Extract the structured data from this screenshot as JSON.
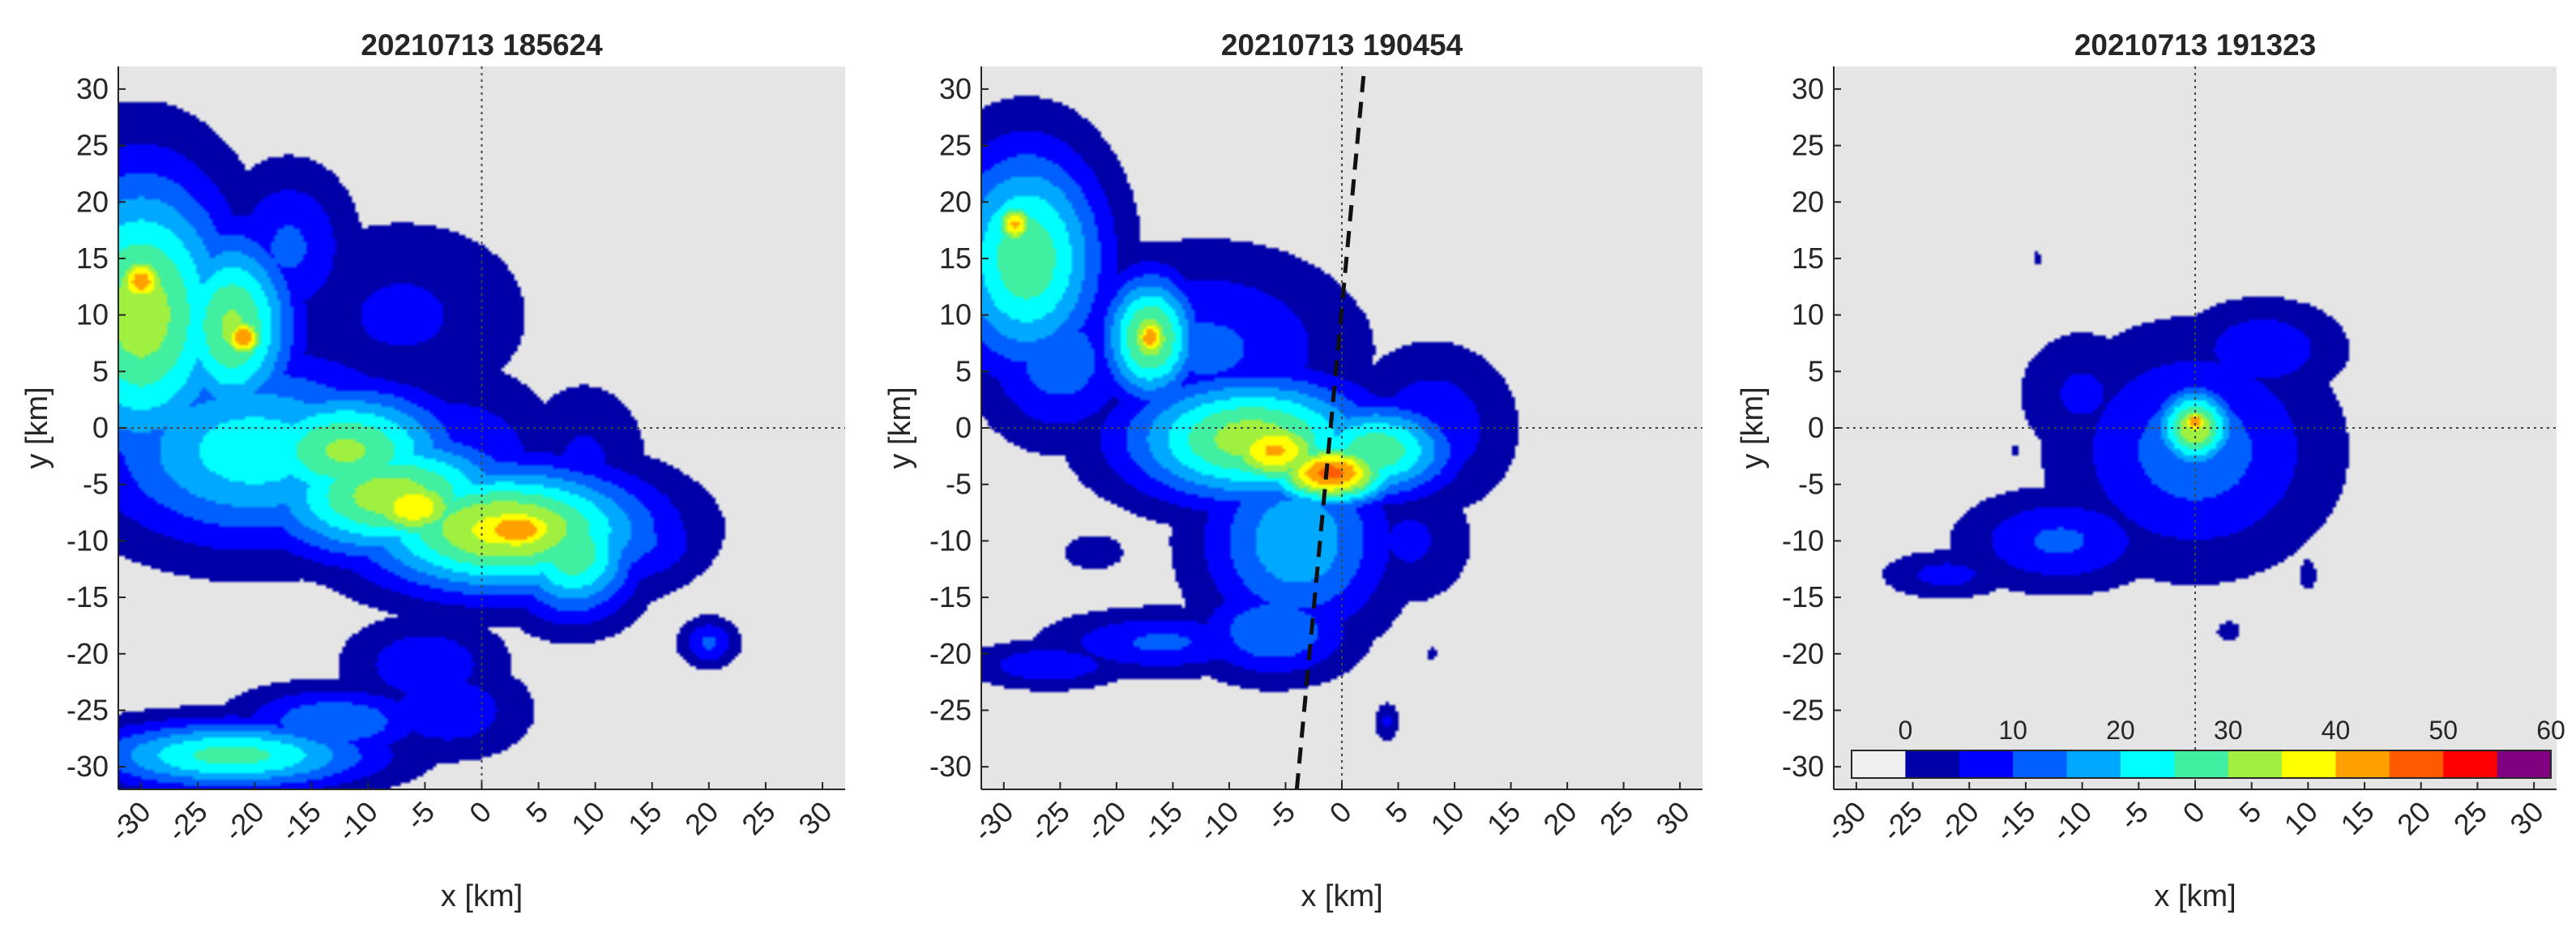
{
  "colors": {
    "background": "#e5e5e5",
    "axis": "#262626",
    "crosshair": "#444444",
    "track": "#111111"
  },
  "chart_data": [
    {
      "type": "heatmap",
      "title": "20210713 185624",
      "xlabel": "x [km]",
      "ylabel": "y [km]",
      "xlim": [
        -32,
        32
      ],
      "ylim": [
        -32,
        32
      ],
      "xticks": [
        "-30",
        "-25",
        "-20",
        "-15",
        "-10",
        "-5",
        "0",
        "5",
        "10",
        "15",
        "20",
        "25",
        "30"
      ],
      "yticks": [
        "30",
        "25",
        "20",
        "15",
        "10",
        "5",
        "0",
        "-5",
        "-10",
        "-15",
        "-20",
        "-25",
        "-30"
      ],
      "crosshair": [
        0,
        0
      ],
      "features": [
        {
          "x": -30,
          "y": 10,
          "sx": 6,
          "sy": 9,
          "val": 32
        },
        {
          "x": -30,
          "y": 13,
          "sx": 2,
          "sy": 2,
          "val": 42
        },
        {
          "x": -22,
          "y": 9,
          "sx": 4,
          "sy": 6,
          "val": 30
        },
        {
          "x": -21,
          "y": 8,
          "sx": 1.5,
          "sy": 1.5,
          "val": 44
        },
        {
          "x": -17,
          "y": 16,
          "sx": 4,
          "sy": 5,
          "val": 10
        },
        {
          "x": -7,
          "y": 10,
          "sx": 8,
          "sy": 6,
          "val": 5
        },
        {
          "x": -20,
          "y": -2,
          "sx": 10,
          "sy": 6,
          "val": 22
        },
        {
          "x": -12,
          "y": -2,
          "sx": 7,
          "sy": 4,
          "val": 30
        },
        {
          "x": -8,
          "y": -6,
          "sx": 8,
          "sy": 4,
          "val": 32
        },
        {
          "x": -6,
          "y": -7,
          "sx": 4,
          "sy": 2.5,
          "val": 38
        },
        {
          "x": 2,
          "y": -9,
          "sx": 9,
          "sy": 4,
          "val": 36
        },
        {
          "x": 3,
          "y": -9,
          "sx": 4,
          "sy": 2,
          "val": 44
        },
        {
          "x": -2,
          "y": -4,
          "sx": 6,
          "sy": 6,
          "val": 10
        },
        {
          "x": 8,
          "y": -11,
          "sx": 4,
          "sy": 4,
          "val": 28
        },
        {
          "x": 9,
          "y": -3,
          "sx": 4,
          "sy": 5,
          "val": 5
        },
        {
          "x": 14,
          "y": -10,
          "sx": 4,
          "sy": 3,
          "val": 10
        },
        {
          "x": 20,
          "y": -19,
          "sx": 1.8,
          "sy": 1.5,
          "val": 10
        },
        {
          "x": -5,
          "y": -21,
          "sx": 5,
          "sy": 3,
          "val": 8
        },
        {
          "x": -3,
          "y": -25,
          "sx": 5,
          "sy": 3,
          "val": 8
        },
        {
          "x": -22,
          "y": -29,
          "sx": 9,
          "sy": 2.2,
          "val": 26
        },
        {
          "x": -13,
          "y": -26,
          "sx": 6,
          "sy": 2.2,
          "val": 14
        }
      ],
      "track": null
    },
    {
      "type": "heatmap",
      "title": "20210713 190454",
      "xlabel": "x [km]",
      "ylabel": "y [km]",
      "xlim": [
        -32,
        32
      ],
      "ylim": [
        -32,
        32
      ],
      "xticks": [
        "-30",
        "-25",
        "-20",
        "-15",
        "-10",
        "-5",
        "0",
        "5",
        "10",
        "15",
        "20",
        "25",
        "30"
      ],
      "yticks": [
        "30",
        "25",
        "20",
        "15",
        "10",
        "5",
        "0",
        "-5",
        "-10",
        "-15",
        "-20",
        "-25",
        "-30"
      ],
      "crosshair": [
        0,
        0
      ],
      "features": [
        {
          "x": -28,
          "y": 15,
          "sx": 5,
          "sy": 7,
          "val": 28
        },
        {
          "x": -29,
          "y": 18,
          "sx": 1.5,
          "sy": 1.5,
          "val": 40
        },
        {
          "x": -25,
          "y": 6,
          "sx": 5,
          "sy": 5,
          "val": 12
        },
        {
          "x": -17,
          "y": 8,
          "sx": 3,
          "sy": 4,
          "val": 32
        },
        {
          "x": -17,
          "y": 8,
          "sx": 1.2,
          "sy": 1.5,
          "val": 44
        },
        {
          "x": -12,
          "y": 7,
          "sx": 9,
          "sy": 6,
          "val": 10
        },
        {
          "x": -8,
          "y": -1,
          "sx": 8,
          "sy": 4,
          "val": 32
        },
        {
          "x": -6,
          "y": -2,
          "sx": 4,
          "sy": 2.5,
          "val": 40
        },
        {
          "x": -1,
          "y": -4,
          "sx": 4,
          "sy": 2,
          "val": 46
        },
        {
          "x": 3,
          "y": -2,
          "sx": 5,
          "sy": 3,
          "val": 28
        },
        {
          "x": 8,
          "y": 0,
          "sx": 5,
          "sy": 5,
          "val": 8
        },
        {
          "x": -3,
          "y": 7,
          "sx": 5,
          "sy": 5,
          "val": 3
        },
        {
          "x": -4,
          "y": -10,
          "sx": 6,
          "sy": 6,
          "val": 18
        },
        {
          "x": 6,
          "y": -10,
          "sx": 4,
          "sy": 4,
          "val": 5
        },
        {
          "x": -6,
          "y": -18,
          "sx": 5,
          "sy": 3,
          "val": 14
        },
        {
          "x": -16,
          "y": -19,
          "sx": 7,
          "sy": 2,
          "val": 10
        },
        {
          "x": -26,
          "y": -21,
          "sx": 5,
          "sy": 1.5,
          "val": 8
        },
        {
          "x": -22,
          "y": -11,
          "sx": 2,
          "sy": 1.2,
          "val": 4
        },
        {
          "x": 4,
          "y": -26,
          "sx": 0.8,
          "sy": 1.2,
          "val": 5
        },
        {
          "x": 8,
          "y": -20,
          "sx": 0.6,
          "sy": 0.8,
          "val": 0
        },
        {
          "x": -24,
          "y": 23,
          "sx": 1,
          "sy": 1,
          "val": 5
        }
      ],
      "track": {
        "x": [
          -4,
          2
        ],
        "y": [
          -32,
          32
        ]
      }
    },
    {
      "type": "heatmap",
      "title": "20210713 191323",
      "xlabel": "x [km]",
      "ylabel": "y [km]",
      "xlim": [
        -32,
        32
      ],
      "ylim": [
        -32,
        32
      ],
      "xticks": [
        "-30",
        "-25",
        "-20",
        "-15",
        "-10",
        "-5",
        "0",
        "5",
        "10",
        "15",
        "20",
        "25",
        "30"
      ],
      "yticks": [
        "30",
        "25",
        "20",
        "15",
        "10",
        "5",
        "0",
        "-5",
        "-10",
        "-15",
        "-20",
        "-25",
        "-30"
      ],
      "crosshair": [
        0,
        0
      ],
      "features": [
        {
          "x": 0,
          "y": -2,
          "sx": 8,
          "sy": 7,
          "val": 12
        },
        {
          "x": 0,
          "y": 0,
          "sx": 2.5,
          "sy": 2.5,
          "val": 34
        },
        {
          "x": 0,
          "y": 0.5,
          "sx": 1,
          "sy": 1,
          "val": 44
        },
        {
          "x": -10,
          "y": 3,
          "sx": 4,
          "sy": 4,
          "val": 5
        },
        {
          "x": 6,
          "y": 7,
          "sx": 5,
          "sy": 3,
          "val": 8
        },
        {
          "x": -12,
          "y": -10,
          "sx": 6,
          "sy": 3,
          "val": 10
        },
        {
          "x": -22,
          "y": -13,
          "sx": 4,
          "sy": 1.5,
          "val": 6
        },
        {
          "x": 10,
          "y": -13,
          "sx": 1,
          "sy": 2,
          "val": 0
        },
        {
          "x": 3,
          "y": -18,
          "sx": 1.5,
          "sy": 1.2,
          "val": 0
        },
        {
          "x": -14,
          "y": 15,
          "sx": 0.5,
          "sy": 0.8,
          "val": 0
        },
        {
          "x": -16,
          "y": -2,
          "sx": 0.5,
          "sy": 0.6,
          "val": 0
        }
      ],
      "track": null
    }
  ],
  "colorbar": {
    "labels": [
      "0",
      "10",
      "20",
      "30",
      "40",
      "50",
      "60"
    ],
    "colors": [
      "#f0f0f0",
      "#0000a8",
      "#0000ff",
      "#0060ff",
      "#00a8ff",
      "#00ffff",
      "#40f0a0",
      "#a0f040",
      "#ffff00",
      "#ffa000",
      "#ff5a00",
      "#ff0000",
      "#800080"
    ]
  }
}
